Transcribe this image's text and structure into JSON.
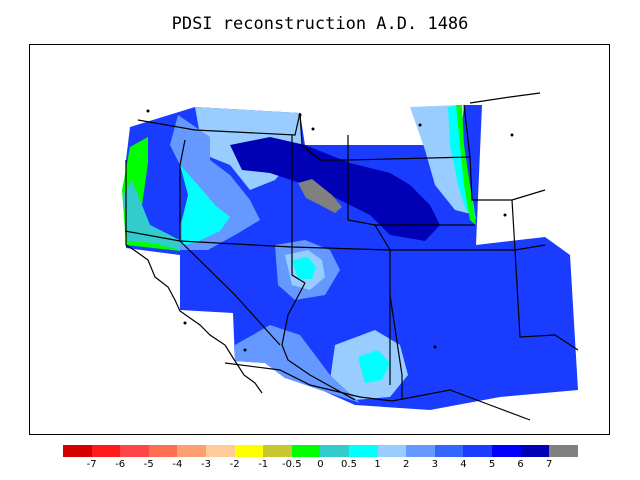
{
  "title": "PDSI reconstruction A.D. 1486",
  "legend": {
    "bins": [
      {
        "color": "#d50000"
      },
      {
        "color": "#ff1a1a"
      },
      {
        "color": "#ff4545"
      },
      {
        "color": "#ff7050"
      },
      {
        "color": "#ff9e70"
      },
      {
        "color": "#ffcc99"
      },
      {
        "color": "#ffff00"
      },
      {
        "color": "#c8c832"
      },
      {
        "color": "#00ff00"
      },
      {
        "color": "#33cccc"
      },
      {
        "color": "#00ffff"
      },
      {
        "color": "#99ccff"
      },
      {
        "color": "#6699ff"
      },
      {
        "color": "#3366ff"
      },
      {
        "color": "#1a3cff"
      },
      {
        "color": "#0000ff"
      },
      {
        "color": "#0000b4"
      },
      {
        "color": "#808080"
      }
    ],
    "tick_labels": [
      "-7",
      "-6",
      "-5",
      "-4",
      "-3",
      "-2",
      "-1",
      "-0.5",
      "0",
      "0.5",
      "1",
      "2",
      "3",
      "4",
      "5",
      "6",
      "7"
    ]
  },
  "map": {
    "region": "western United States",
    "colors": {
      "deep": "#0000b4",
      "strong": "#0000ff",
      "medium": "#1a3cff",
      "moderate": "#3366ff",
      "light": "#6699ff",
      "pale": "#99ccff",
      "cyan": "#00ffff",
      "teal": "#33cccc",
      "green": "#00ff00",
      "gray": "#808080"
    }
  }
}
